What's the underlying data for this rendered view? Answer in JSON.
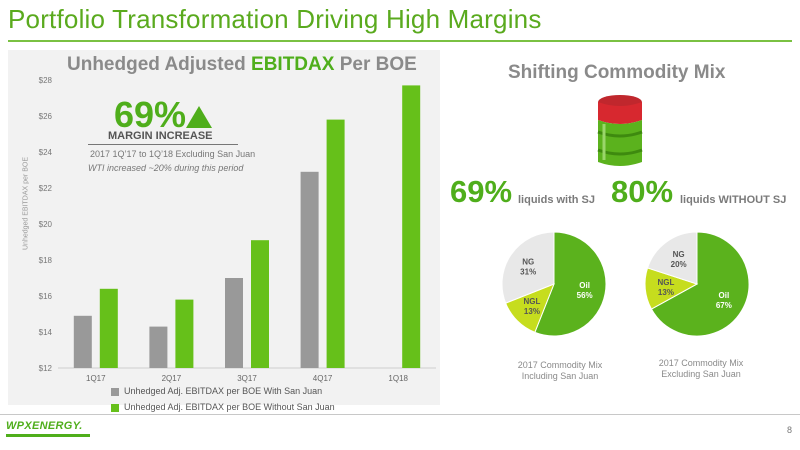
{
  "title": "Portfolio Transformation Driving High Margins",
  "chart_heading_prefix": "Unhedged Adjusted ",
  "chart_heading_highlight": "EBITDAX",
  "chart_heading_suffix": " Per BOE",
  "callout": {
    "big": "69%",
    "label": "MARGIN INCREASE",
    "sub": "2017 1Q’17 to 1Q’18 Excluding San Juan",
    "note": "WTI increased ~20% during this period"
  },
  "colors": {
    "with_sj": "#999999",
    "without_sj": "#66c01a",
    "ng": "#e8e8e8",
    "oil": "#5bb21d",
    "ngl": "#c6dd1e"
  },
  "mix_heading": "Shifting Commodity Mix",
  "stats": [
    {
      "big": "69%",
      "small": "liquids with SJ"
    },
    {
      "big": "80%",
      "small": "liquids WITHOUT SJ"
    }
  ],
  "pie_captions": [
    "2017 Commodity Mix Including San Juan",
    "2017 Commodity Mix Excluding San Juan"
  ],
  "logo": "WPXENERGY.",
  "page_number": "8",
  "chart_data": [
    {
      "type": "bar",
      "title": "Unhedged Adjusted EBITDAX Per BOE",
      "ylabel": "Unhedged EBITDAX per BOE",
      "categories": [
        "1Q17",
        "2Q17",
        "3Q17",
        "4Q17",
        "1Q18"
      ],
      "ylim": [
        12,
        28
      ],
      "yticks": [
        "$12",
        "$14",
        "$16",
        "$18",
        "$20",
        "$22",
        "$24",
        "$26",
        "$28"
      ],
      "series": [
        {
          "name": "Unhedged Adj. EBITDAX per BOE With San Juan",
          "values": [
            14.9,
            14.3,
            17.0,
            22.9,
            null
          ]
        },
        {
          "name": "Unhedged Adj. EBITDAX per BOE Without San Juan",
          "values": [
            16.4,
            15.8,
            19.1,
            25.8,
            27.7
          ]
        }
      ],
      "legend": "bottom"
    },
    {
      "type": "pie",
      "title": "2017 Commodity Mix Including San Juan",
      "slices": [
        {
          "label": "Oil",
          "value": 56
        },
        {
          "label": "NGL",
          "value": 13
        },
        {
          "label": "NG",
          "value": 31
        }
      ]
    },
    {
      "type": "pie",
      "title": "2017 Commodity Mix Excluding San Juan",
      "slices": [
        {
          "label": "Oil",
          "value": 67
        },
        {
          "label": "NGL",
          "value": 13
        },
        {
          "label": "NG",
          "value": 20
        }
      ]
    }
  ]
}
